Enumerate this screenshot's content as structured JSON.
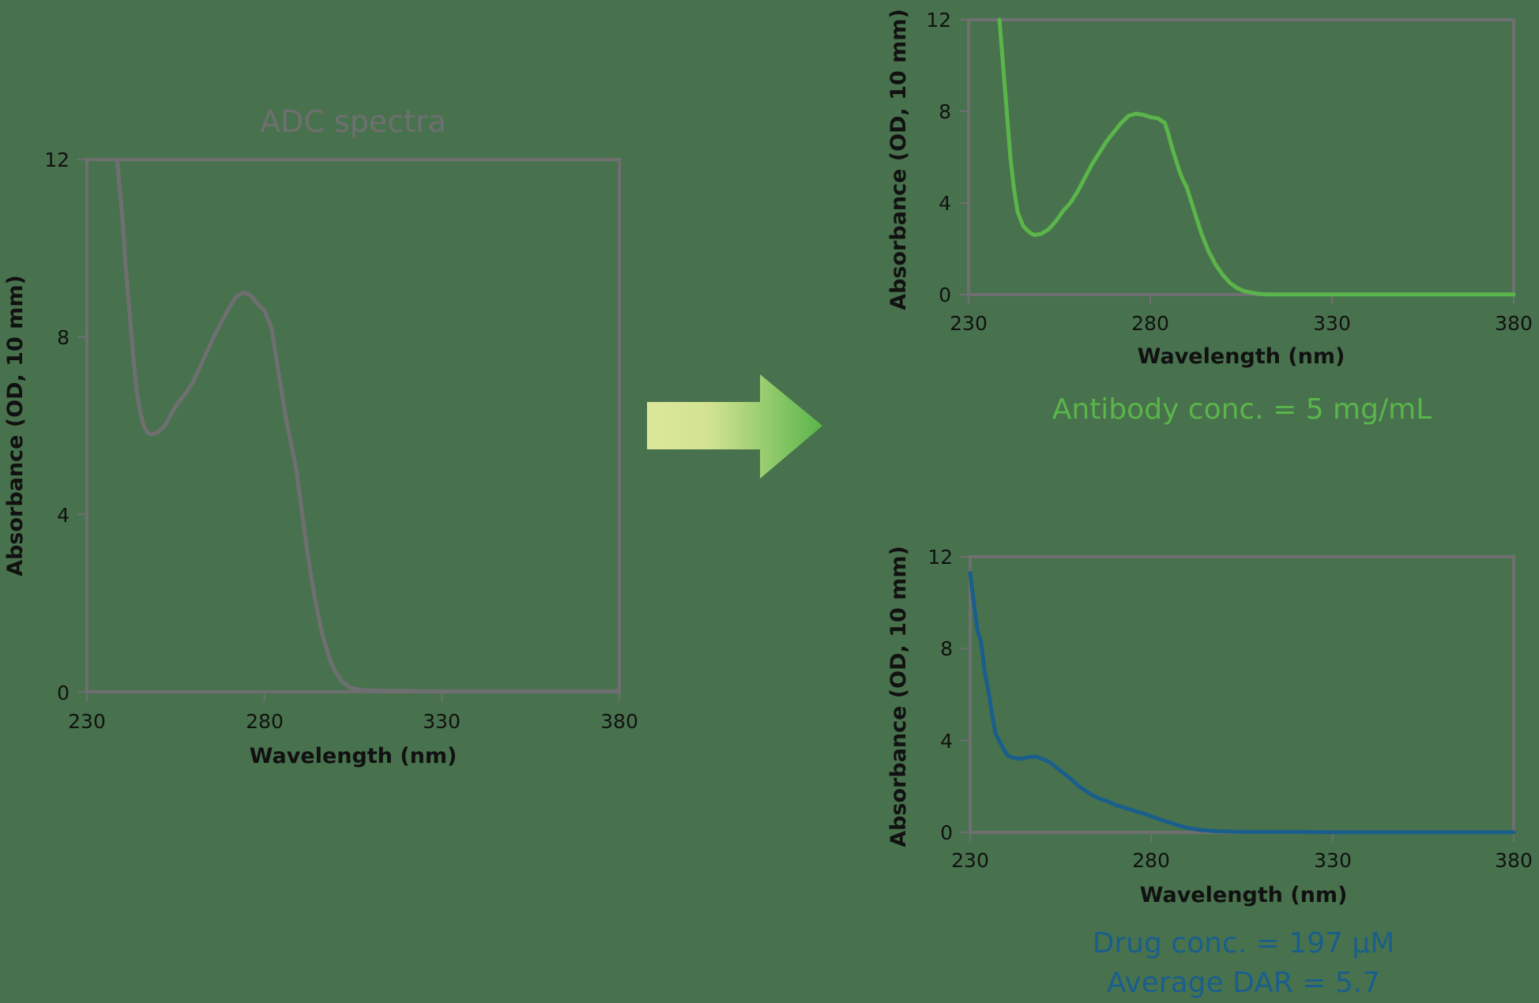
{
  "colors": {
    "background": "#48724d",
    "axis": "#6f6f71",
    "adc_line": "#6f6f71",
    "antibody_line": "#5ab54a",
    "drug_line": "#1a5e8c",
    "arrow_start": "#dbe79a",
    "arrow_end": "#5ab54a"
  },
  "left_chart": {
    "title": "ADC spectra",
    "xlabel": "Wavelength (nm)",
    "ylabel": "Absorbance (OD, 10 mm)",
    "xticks": [
      "230",
      "280",
      "330",
      "380"
    ],
    "yticks": [
      "0",
      "4",
      "8",
      "12"
    ]
  },
  "top_right_chart": {
    "xlabel": "Wavelength (nm)",
    "ylabel": "Absorbance (OD, 10 mm)",
    "xticks": [
      "230",
      "280",
      "330",
      "380"
    ],
    "yticks": [
      "0",
      "4",
      "8",
      "12"
    ],
    "annotation": "Antibody conc. = 5 mg/mL"
  },
  "bottom_right_chart": {
    "xlabel": "Wavelength (nm)",
    "ylabel": "Absorbance (OD, 10 mm)",
    "xticks": [
      "230",
      "280",
      "330",
      "380"
    ],
    "yticks": [
      "0",
      "4",
      "8",
      "12"
    ],
    "annotation_line1": "Drug conc. = 197 µM",
    "annotation_line2": "Average DAR = 5.7"
  },
  "arrow": {
    "icon": "right-arrow-icon"
  },
  "chart_data": [
    {
      "type": "line",
      "title": "ADC spectra",
      "xlabel": "Wavelength (nm)",
      "ylabel": "Absorbance (OD, 10 mm)",
      "xlim": [
        230,
        380
      ],
      "ylim": [
        0,
        12
      ],
      "grid": false,
      "series": [
        {
          "name": "ADC",
          "color": "#6f6f71",
          "x": [
            238.5,
            240,
            241,
            242,
            243,
            244,
            245,
            246,
            247,
            248,
            250,
            252,
            254,
            256,
            258,
            260,
            262,
            264,
            266,
            268,
            270,
            272,
            274,
            276,
            278,
            280,
            282,
            283,
            284,
            285,
            286,
            287,
            288,
            289,
            290,
            291,
            292,
            293,
            294,
            295,
            296,
            297,
            298,
            299,
            300,
            302,
            304,
            306,
            308,
            310,
            312,
            315,
            320,
            330,
            340,
            350,
            360,
            370,
            380
          ],
          "values": [
            12,
            10.7,
            9.5,
            8.6,
            7.6,
            6.8,
            6.3,
            6.0,
            5.85,
            5.8,
            5.85,
            6.0,
            6.3,
            6.55,
            6.75,
            7.0,
            7.35,
            7.7,
            8.05,
            8.35,
            8.65,
            8.9,
            9.0,
            8.95,
            8.75,
            8.6,
            8.2,
            7.7,
            7.2,
            6.7,
            6.2,
            5.8,
            5.4,
            5.0,
            4.4,
            3.8,
            3.2,
            2.7,
            2.2,
            1.8,
            1.4,
            1.1,
            0.85,
            0.62,
            0.45,
            0.22,
            0.1,
            0.06,
            0.04,
            0.03,
            0.03,
            0.02,
            0.02,
            0.01,
            0.01,
            0.01,
            0.01,
            0.01,
            0.01
          ]
        }
      ]
    },
    {
      "type": "line",
      "title": "",
      "xlabel": "Wavelength (nm)",
      "ylabel": "Absorbance (OD, 10 mm)",
      "xlim": [
        230,
        380
      ],
      "ylim": [
        0,
        12
      ],
      "grid": false,
      "annotation": "Antibody conc. = 5 mg/mL",
      "series": [
        {
          "name": "Antibody",
          "color": "#5ab54a",
          "x": [
            238.5,
            239.5,
            240.5,
            241.5,
            242.5,
            243.5,
            245,
            246.5,
            248,
            250,
            252,
            254,
            256,
            258,
            260,
            262,
            264,
            266,
            268,
            270,
            272,
            274,
            276,
            278,
            280,
            282,
            284,
            285,
            286,
            287,
            288,
            289,
            290,
            291,
            292,
            293,
            294,
            295,
            296,
            298,
            300,
            302,
            304,
            306,
            308,
            310,
            312,
            315,
            320,
            330,
            340,
            350,
            360,
            370,
            380
          ],
          "values": [
            12,
            10.0,
            8.0,
            6.0,
            4.6,
            3.6,
            3.0,
            2.75,
            2.6,
            2.65,
            2.85,
            3.2,
            3.65,
            4.0,
            4.5,
            5.1,
            5.7,
            6.2,
            6.7,
            7.1,
            7.5,
            7.8,
            7.9,
            7.85,
            7.75,
            7.7,
            7.5,
            7.0,
            6.4,
            5.9,
            5.4,
            5.0,
            4.7,
            4.2,
            3.7,
            3.2,
            2.7,
            2.3,
            1.9,
            1.3,
            0.85,
            0.5,
            0.28,
            0.14,
            0.08,
            0.03,
            0.01,
            0.01,
            0.01,
            0.01,
            0.01,
            0.01,
            0.01,
            0.01,
            0.01
          ]
        }
      ]
    },
    {
      "type": "line",
      "title": "",
      "xlabel": "Wavelength (nm)",
      "ylabel": "Absorbance (OD, 10 mm)",
      "xlim": [
        230,
        380
      ],
      "ylim": [
        0,
        12
      ],
      "grid": false,
      "annotation": "Drug conc. = 197 µM; Average DAR = 5.7",
      "series": [
        {
          "name": "Drug",
          "color": "#1a5e8c",
          "x": [
            230,
            231,
            232,
            233,
            234,
            235,
            236,
            237,
            238,
            239,
            240,
            241,
            242,
            244,
            246,
            248,
            250,
            252,
            254,
            256,
            258,
            260,
            262,
            264,
            266,
            268,
            270,
            272,
            274,
            276,
            278,
            280,
            282,
            284,
            286,
            288,
            290,
            292,
            294,
            296,
            298,
            300,
            305,
            310,
            320,
            330,
            340,
            350,
            360,
            370,
            380
          ],
          "values": [
            11.3,
            10.0,
            8.8,
            8.3,
            7.0,
            6.2,
            5.2,
            4.3,
            4.0,
            3.7,
            3.4,
            3.3,
            3.25,
            3.2,
            3.28,
            3.3,
            3.2,
            3.05,
            2.8,
            2.55,
            2.3,
            2.0,
            1.8,
            1.6,
            1.45,
            1.35,
            1.2,
            1.1,
            1.0,
            0.9,
            0.82,
            0.7,
            0.58,
            0.48,
            0.38,
            0.28,
            0.2,
            0.14,
            0.1,
            0.08,
            0.05,
            0.04,
            0.02,
            0.02,
            0.02,
            0.01,
            0.01,
            0.01,
            0.01,
            0.01,
            0.01
          ]
        }
      ]
    }
  ]
}
